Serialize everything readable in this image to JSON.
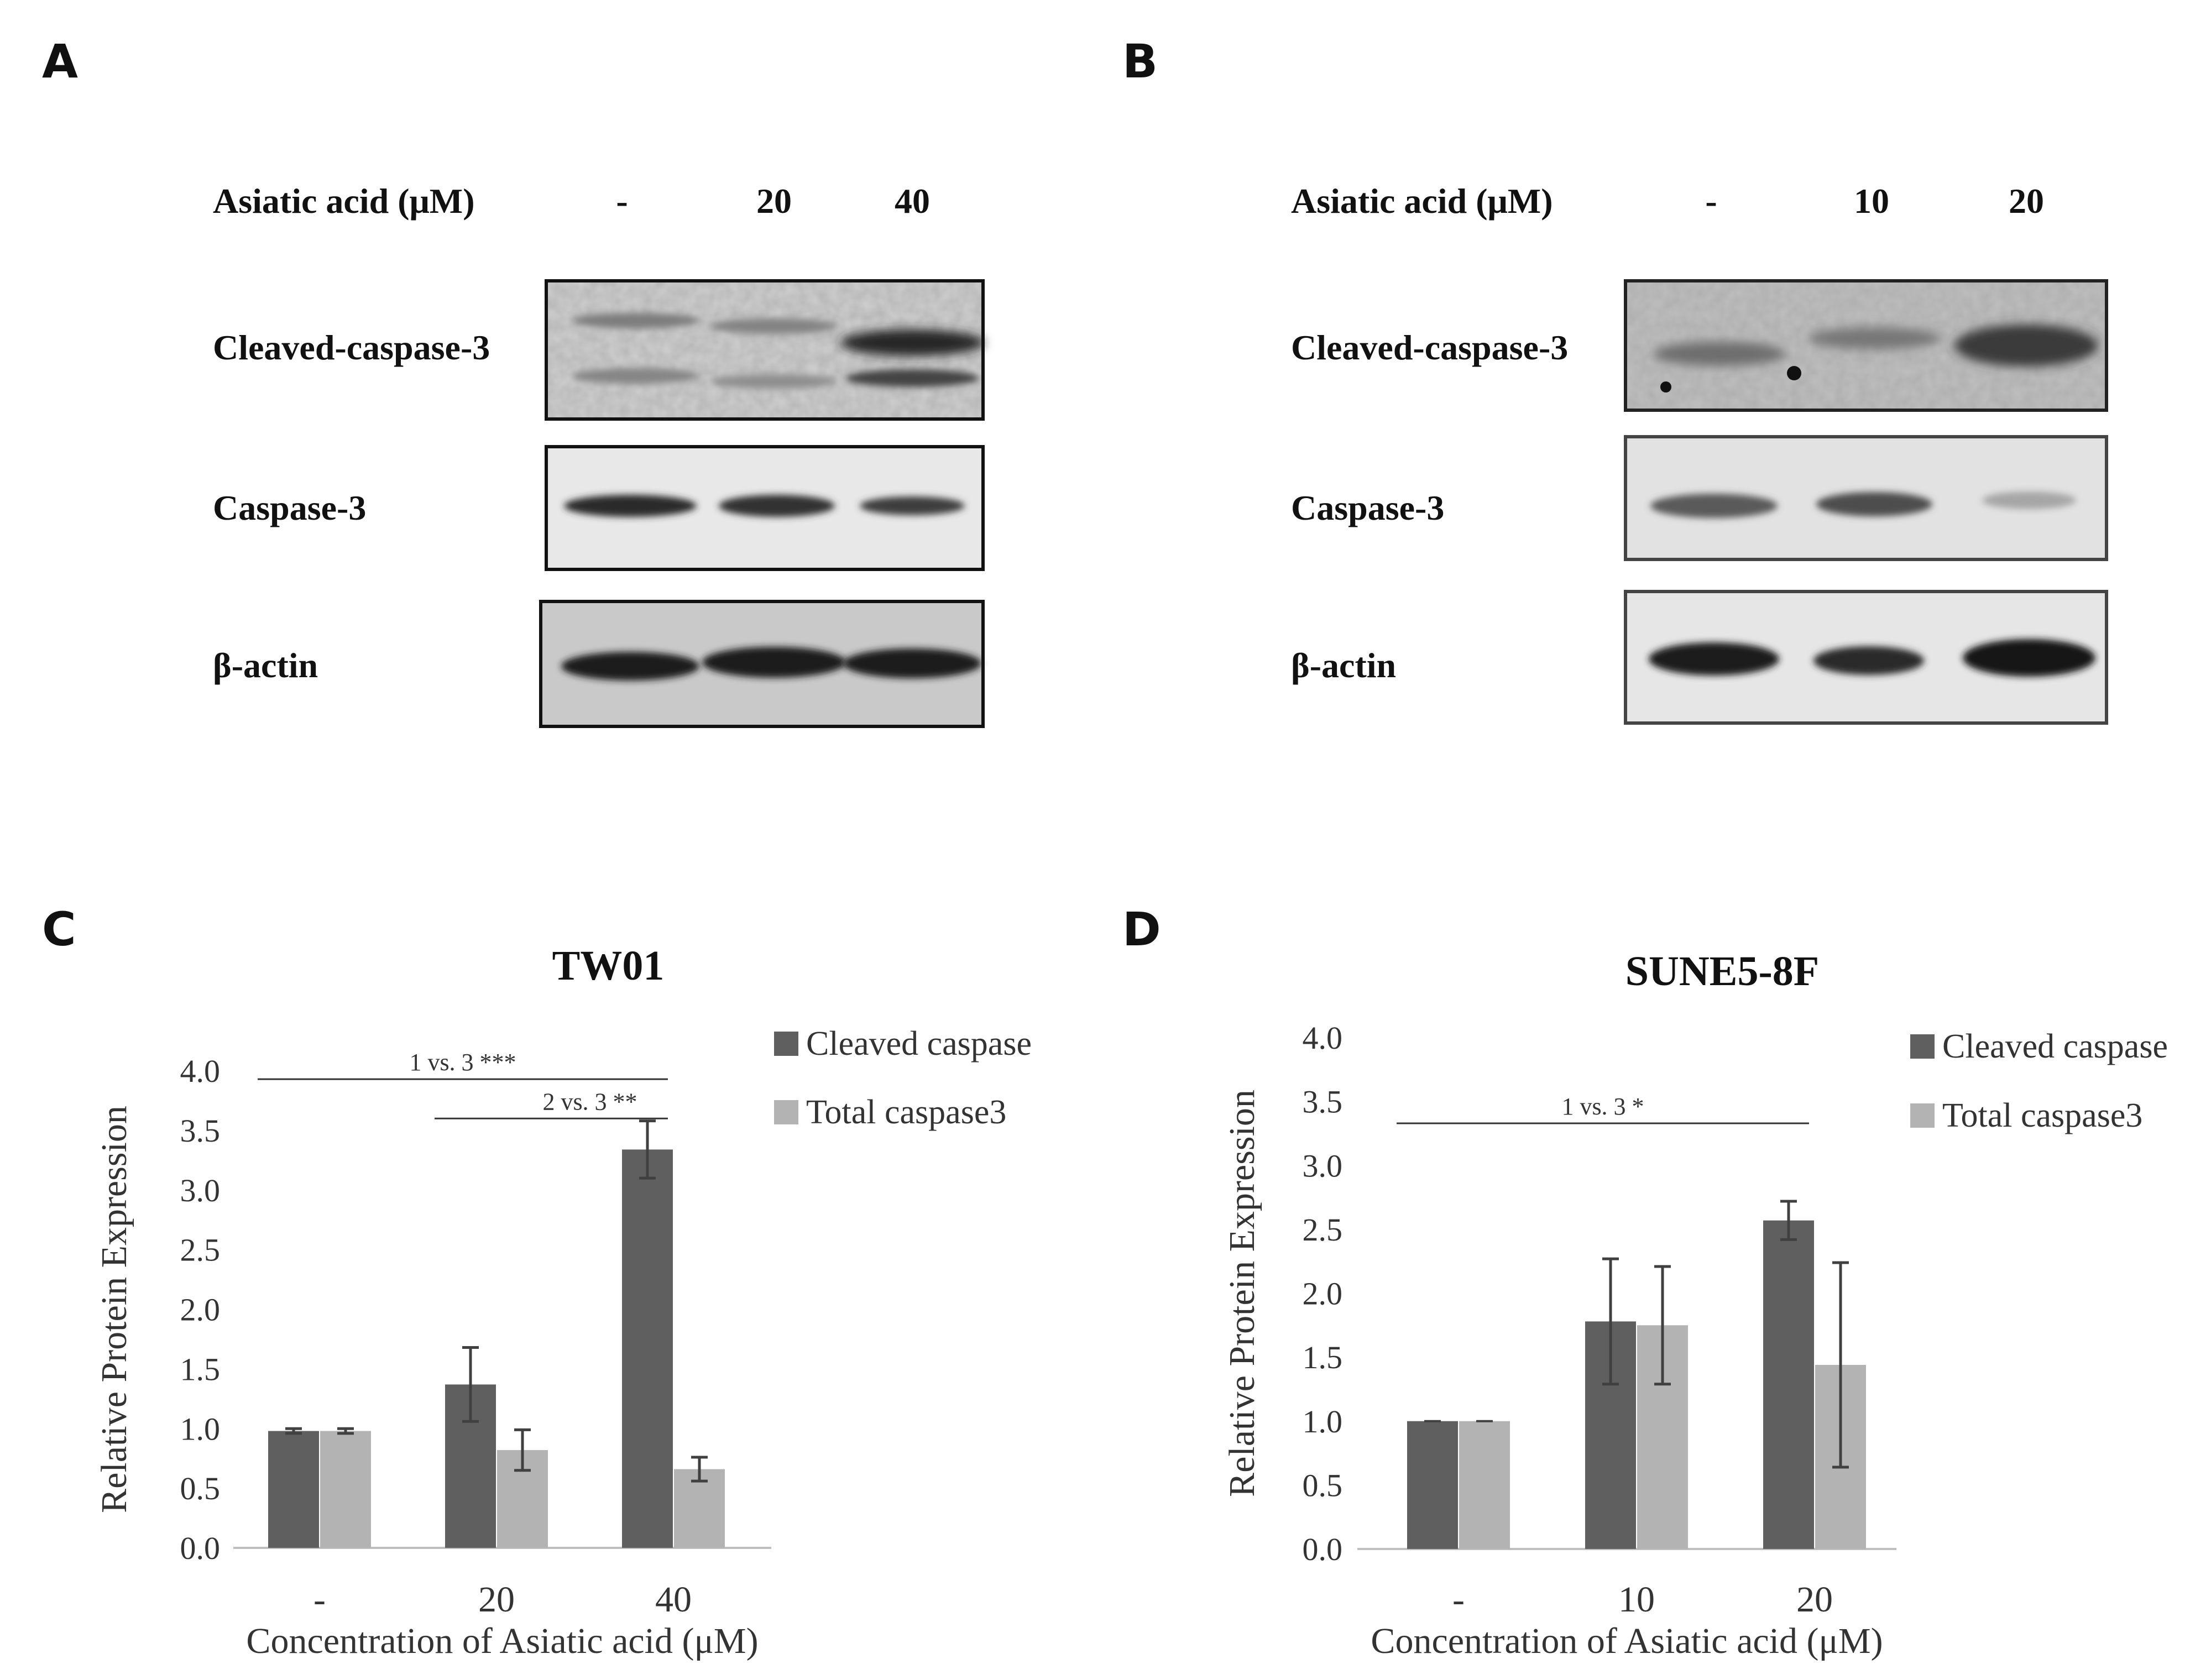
{
  "panels": {
    "A": {
      "letter": "A",
      "treatment_label": "Asiatic acid (μM)",
      "lanes": [
        "-",
        "20",
        "40"
      ],
      "rows": [
        {
          "label": "Cleaved-caspase-3"
        },
        {
          "label": "Caspase-3"
        },
        {
          "label": "β-actin"
        }
      ]
    },
    "B": {
      "letter": "B",
      "treatment_label": "Asiatic acid (μM)",
      "lanes": [
        "-",
        "10",
        "20"
      ],
      "rows": [
        {
          "label": "Cleaved-caspase-3"
        },
        {
          "label": "Caspase-3"
        },
        {
          "label": "β-actin"
        }
      ]
    },
    "C": {
      "letter": "C"
    },
    "D": {
      "letter": "D"
    }
  },
  "colors": {
    "cleaved": "#5f5f5f",
    "total": "#b3b3b3",
    "axis": "#bfbfbf",
    "text": "#333333"
  },
  "chart_data": [
    {
      "type": "bar",
      "title": "TW01",
      "xlabel": "Concentration of Asiatic acid (μM)",
      "ylabel": "Relative Protein Expression",
      "categories": [
        "-",
        "20",
        "40"
      ],
      "ylim": [
        0,
        4
      ],
      "yticks": [
        "0.0",
        "0.5",
        "1.0",
        "1.5",
        "2.0",
        "2.5",
        "3.0",
        "3.5",
        "4.0"
      ],
      "legend_position": "top-right",
      "series": [
        {
          "name": "Cleaved caspase",
          "values": [
            0.98,
            1.37,
            3.34
          ],
          "errors": [
            0.02,
            0.31,
            0.24
          ]
        },
        {
          "name": "Total caspase3",
          "values": [
            0.98,
            0.82,
            0.66
          ],
          "errors": [
            0.02,
            0.17,
            0.1
          ]
        }
      ],
      "annotations": [
        {
          "text": "1 vs. 3 ***",
          "from": 0,
          "to": 2,
          "y": 3.93
        },
        {
          "text": "2 vs. 3 **",
          "from": 1,
          "to": 2,
          "y": 3.6
        }
      ]
    },
    {
      "type": "bar",
      "title": "SUNE5-8F",
      "xlabel": "Concentration of Asiatic acid (μM)",
      "ylabel": "Relative Protein Expression",
      "categories": [
        "-",
        "10",
        "20"
      ],
      "ylim": [
        0,
        4
      ],
      "yticks": [
        "0.0",
        "0.5",
        "1.0",
        "1.5",
        "2.0",
        "2.5",
        "3.0",
        "3.5",
        "4.0"
      ],
      "legend_position": "top-right",
      "series": [
        {
          "name": "Cleaved caspase",
          "values": [
            1.0,
            1.78,
            2.57
          ],
          "errors": [
            0.0,
            0.49,
            0.15
          ]
        },
        {
          "name": "Total caspase3",
          "values": [
            1.0,
            1.75,
            1.44
          ],
          "errors": [
            0.0,
            0.46,
            0.8
          ]
        }
      ],
      "annotations": [
        {
          "text": "1 vs. 3 *",
          "from": 0,
          "to": 2,
          "y": 3.33
        }
      ]
    }
  ]
}
